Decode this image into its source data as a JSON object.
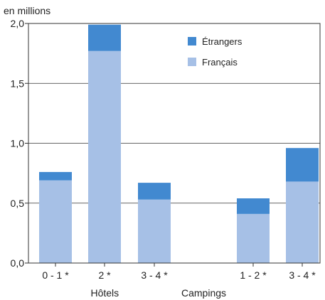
{
  "chart_data": {
    "type": "bar",
    "stacked": true,
    "ylabel": "en millions",
    "ylim": [
      0,
      2.0
    ],
    "yticks": [
      "0,0",
      "0,5",
      "1,0",
      "1,5",
      "2,0"
    ],
    "ytick_values": [
      0,
      0.5,
      1.0,
      1.5,
      2.0
    ],
    "grid": true,
    "legend_position": "top-right",
    "categories": [
      "0 - 1 *",
      "2 *",
      "3 - 4 *",
      "1 - 2 *",
      "3 - 4 *"
    ],
    "groups": [
      {
        "label": "Hôtels",
        "categories": [
          "0 - 1 *",
          "2 *",
          "3 - 4 *"
        ]
      },
      {
        "label": "Campings",
        "categories": [
          "1 - 2 *",
          "3 - 4 *"
        ]
      }
    ],
    "series": [
      {
        "name": "Français",
        "color": "#a6c0e6",
        "values": [
          0.69,
          1.77,
          0.53,
          0.41,
          0.68
        ]
      },
      {
        "name": "Étrangers",
        "color": "#4289d0",
        "values": [
          0.07,
          0.22,
          0.14,
          0.13,
          0.28
        ]
      }
    ]
  }
}
